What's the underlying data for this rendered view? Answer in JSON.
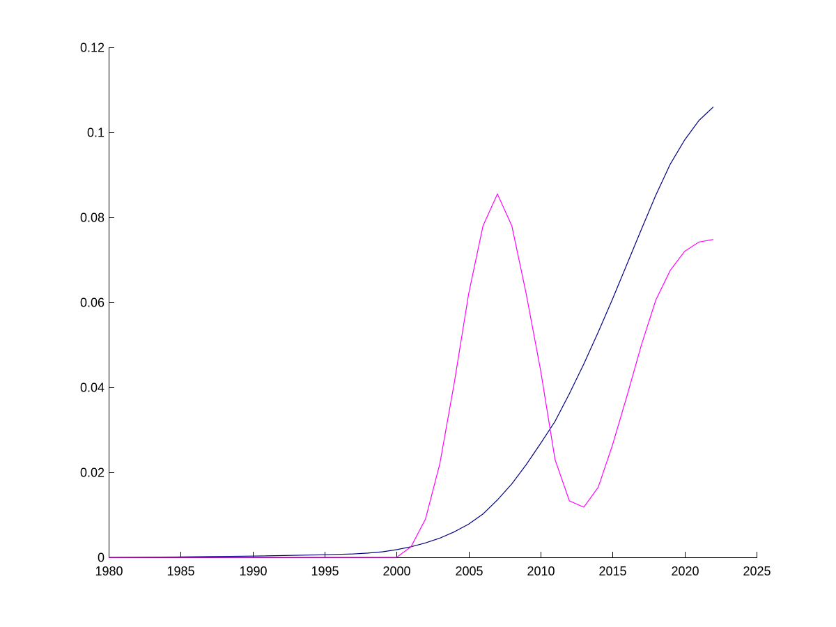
{
  "chart_data": {
    "type": "line",
    "title": "",
    "xlabel": "",
    "ylabel": "",
    "xlim": [
      1980,
      2025
    ],
    "ylim": [
      0,
      0.12
    ],
    "grid": false,
    "legend": "none",
    "x_ticks": [
      1980,
      1985,
      1990,
      1995,
      2000,
      2005,
      2010,
      2015,
      2020,
      2025
    ],
    "x_tick_labels": [
      "1980",
      "1985",
      "1990",
      "1995",
      "2000",
      "2005",
      "2010",
      "2015",
      "2020",
      "2025"
    ],
    "y_ticks": [
      0,
      0.02,
      0.04,
      0.06,
      0.08,
      0.1,
      0.12
    ],
    "y_tick_labels": [
      "0",
      "0.02",
      "0.04",
      "0.06",
      "0.08",
      "0.1",
      "0.12"
    ],
    "series": [
      {
        "color": "#000080",
        "x": [
          1980,
          1985,
          1990,
          1995,
          1997,
          1998,
          1999,
          2000,
          2001,
          2002,
          2003,
          2004,
          2005,
          2006,
          2007,
          2008,
          2009,
          2010,
          2011,
          2012,
          2013,
          2014,
          2015,
          2016,
          2017,
          2018,
          2019,
          2020,
          2021,
          2022
        ],
        "y": [
          0.0,
          0.0001,
          0.0003,
          0.0006,
          0.0008,
          0.001,
          0.0013,
          0.0018,
          0.0025,
          0.0034,
          0.0045,
          0.006,
          0.0078,
          0.0102,
          0.0135,
          0.0173,
          0.0218,
          0.0268,
          0.032,
          0.0385,
          0.0455,
          0.053,
          0.0608,
          0.069,
          0.0772,
          0.0852,
          0.0925,
          0.0982,
          0.1028,
          0.106
        ]
      },
      {
        "color": "#ff00ff",
        "x": [
          1980,
          2000,
          2001,
          2002,
          2003,
          2004,
          2005,
          2006,
          2007,
          2008,
          2009,
          2010,
          2011,
          2012,
          2013,
          2014,
          2015,
          2016,
          2017,
          2018,
          2019,
          2020,
          2021,
          2022
        ],
        "y": [
          0.0,
          0.0,
          0.0025,
          0.009,
          0.022,
          0.041,
          0.062,
          0.078,
          0.0855,
          0.078,
          0.062,
          0.044,
          0.023,
          0.0133,
          0.0118,
          0.0165,
          0.0265,
          0.038,
          0.05,
          0.0605,
          0.0675,
          0.072,
          0.0742,
          0.0748
        ]
      }
    ]
  }
}
